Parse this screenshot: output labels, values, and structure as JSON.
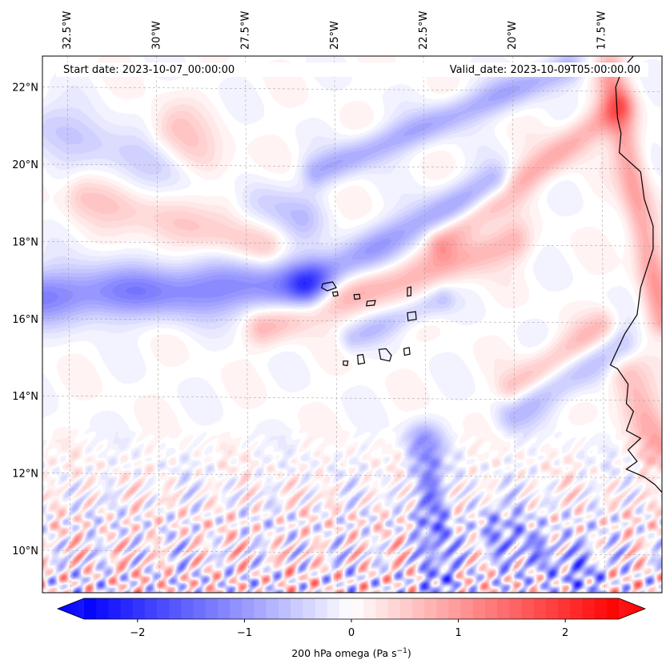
{
  "map": {
    "start_label": "Start date: 2023-10-07_00:00:00",
    "valid_label": "Valid_date: 2023-10-09T05:00:00.00",
    "extent": {
      "lon_min": -33.2,
      "lon_max": -15.8,
      "lat_min": 8.9,
      "lat_max": 22.8
    },
    "lon_ticks": [
      {
        "value": -32.5,
        "label": "32.5°W"
      },
      {
        "value": -30.0,
        "label": "30°W"
      },
      {
        "value": -27.5,
        "label": "27.5°W"
      },
      {
        "value": -25.0,
        "label": "25°W"
      },
      {
        "value": -22.5,
        "label": "22.5°W"
      },
      {
        "value": -20.0,
        "label": "20°W"
      },
      {
        "value": -17.5,
        "label": "17.5°W"
      }
    ],
    "lat_ticks": [
      {
        "value": 22,
        "label": "22°N"
      },
      {
        "value": 20,
        "label": "20°N"
      },
      {
        "value": 18,
        "label": "18°N"
      },
      {
        "value": 16,
        "label": "16°N"
      },
      {
        "value": 14,
        "label": "14°N"
      },
      {
        "value": 12,
        "label": "12°N"
      },
      {
        "value": 10,
        "label": "10°N"
      }
    ],
    "field_features": [
      {
        "type": "band",
        "sign": -1,
        "amp": 1.3,
        "lon0": -33.2,
        "lat0": 16.6,
        "lon1": -25.8,
        "lat1": 16.9,
        "width": 0.5
      },
      {
        "type": "band",
        "sign": -1,
        "amp": 1.0,
        "lon0": -25.8,
        "lat0": 16.9,
        "lon1": -20.5,
        "lat1": 19.5,
        "width": 0.35
      },
      {
        "type": "band",
        "sign": 1,
        "amp": 0.8,
        "lon0": -27.0,
        "lat0": 15.8,
        "lon1": -20.0,
        "lat1": 18.0,
        "width": 0.35
      },
      {
        "type": "band",
        "sign": -1,
        "amp": 0.9,
        "lon0": -25.5,
        "lat0": 19.8,
        "lon1": -18.5,
        "lat1": 22.5,
        "width": 0.3
      },
      {
        "type": "band",
        "sign": 1,
        "amp": 0.9,
        "lon0": -22.0,
        "lat0": 18.0,
        "lon1": -17.0,
        "lat1": 21.5,
        "width": 0.3
      },
      {
        "type": "band",
        "sign": -1,
        "amp": 0.6,
        "lon0": -33.0,
        "lat0": 21.0,
        "lon1": -26.0,
        "lat1": 18.6,
        "width": 0.45
      },
      {
        "type": "band",
        "sign": 1,
        "amp": 0.6,
        "lon0": -32.0,
        "lat0": 19.2,
        "lon1": -27.0,
        "lat1": 17.8,
        "width": 0.4
      },
      {
        "type": "band",
        "sign": 1,
        "amp": 0.7,
        "lon0": -29.5,
        "lat0": 20.8,
        "lon1": -28.0,
        "lat1": 19.3,
        "width": 0.5
      },
      {
        "type": "band",
        "sign": -1,
        "amp": 0.7,
        "lon0": -20.0,
        "lat0": 13.5,
        "lon1": -17.0,
        "lat1": 15.3,
        "width": 0.35
      },
      {
        "type": "band",
        "sign": 1,
        "amp": 0.7,
        "lon0": -20.0,
        "lat0": 14.2,
        "lon1": -17.5,
        "lat1": 15.8,
        "width": 0.3
      },
      {
        "type": "band",
        "sign": -1,
        "amp": 1.2,
        "lon0": -22.5,
        "lat0": 12.8,
        "lon1": -22.0,
        "lat1": 9.2,
        "width": 0.35
      },
      {
        "type": "band",
        "sign": -1,
        "amp": 1.0,
        "lon0": -20.5,
        "lat0": 10.6,
        "lon1": -18.0,
        "lat1": 9.4,
        "width": 0.45
      },
      {
        "type": "band",
        "sign": 1,
        "amp": 1.0,
        "lon0": -17.3,
        "lat0": 22.5,
        "lon1": -15.8,
        "lat1": 16.0,
        "width": 0.3
      },
      {
        "type": "band",
        "sign": 1,
        "amp": 0.8,
        "lon0": -16.8,
        "lat0": 14.5,
        "lon1": -15.8,
        "lat1": 12.5,
        "width": 0.4
      },
      {
        "type": "band",
        "sign": -1,
        "amp": 0.6,
        "lon0": -24.5,
        "lat0": 15.5,
        "lon1": -22.0,
        "lat1": 16.5,
        "width": 0.25
      }
    ],
    "islands": [
      [
        [
          -25.33,
          16.9
        ],
        [
          -25.05,
          16.95
        ],
        [
          -24.95,
          16.8
        ],
        [
          -25.2,
          16.72
        ],
        [
          -25.36,
          16.8
        ]
      ],
      [
        [
          -25.05,
          16.68
        ],
        [
          -24.92,
          16.7
        ],
        [
          -24.9,
          16.6
        ],
        [
          -25.02,
          16.58
        ]
      ],
      [
        [
          -24.45,
          16.62
        ],
        [
          -24.3,
          16.63
        ],
        [
          -24.28,
          16.52
        ],
        [
          -24.43,
          16.5
        ]
      ],
      [
        [
          -24.08,
          16.45
        ],
        [
          -23.85,
          16.47
        ],
        [
          -23.88,
          16.35
        ],
        [
          -24.1,
          16.33
        ]
      ],
      [
        [
          -22.95,
          16.8
        ],
        [
          -22.85,
          16.82
        ],
        [
          -22.85,
          16.6
        ],
        [
          -22.95,
          16.58
        ]
      ],
      [
        [
          -22.95,
          16.15
        ],
        [
          -22.72,
          16.18
        ],
        [
          -22.7,
          15.98
        ],
        [
          -22.93,
          15.95
        ]
      ],
      [
        [
          -23.75,
          15.2
        ],
        [
          -23.55,
          15.22
        ],
        [
          -23.4,
          15.05
        ],
        [
          -23.45,
          14.9
        ],
        [
          -23.7,
          14.95
        ]
      ],
      [
        [
          -24.35,
          15.05
        ],
        [
          -24.2,
          15.07
        ],
        [
          -24.15,
          14.85
        ],
        [
          -24.33,
          14.82
        ]
      ],
      [
        [
          -23.05,
          15.22
        ],
        [
          -22.9,
          15.25
        ],
        [
          -22.88,
          15.08
        ],
        [
          -23.03,
          15.05
        ]
      ],
      [
        [
          -24.75,
          14.9
        ],
        [
          -24.62,
          14.9
        ],
        [
          -24.64,
          14.78
        ],
        [
          -24.75,
          14.8
        ]
      ]
    ],
    "coastline": [
      [
        -16.6,
        22.8
      ],
      [
        -16.9,
        22.5
      ],
      [
        -17.1,
        22.0
      ],
      [
        -17.05,
        21.2
      ],
      [
        -16.95,
        20.8
      ],
      [
        -17.0,
        20.3
      ],
      [
        -16.4,
        19.8
      ],
      [
        -16.3,
        19.1
      ],
      [
        -16.05,
        18.4
      ],
      [
        -16.05,
        17.8
      ],
      [
        -16.4,
        16.8
      ],
      [
        -16.5,
        16.1
      ],
      [
        -16.85,
        15.6
      ],
      [
        -17.25,
        14.8
      ],
      [
        -17.05,
        14.7
      ],
      [
        -16.75,
        14.3
      ],
      [
        -16.8,
        13.8
      ],
      [
        -16.6,
        13.6
      ],
      [
        -16.8,
        13.1
      ],
      [
        -16.4,
        12.9
      ],
      [
        -16.75,
        12.6
      ],
      [
        -16.5,
        12.3
      ],
      [
        -16.8,
        12.1
      ],
      [
        -16.3,
        11.9
      ],
      [
        -16.0,
        11.7
      ],
      [
        -15.8,
        11.5
      ]
    ]
  },
  "colorbar": {
    "vmin": -2.75,
    "vmax": 2.75,
    "tick_values": [
      -2,
      -1,
      0,
      1,
      2
    ],
    "tick_labels": [
      "−2",
      "−1",
      "0",
      "1",
      "2"
    ],
    "label_base": "200 hPa omega (Pa s",
    "label_exp": "−1",
    "label_close": ")",
    "color_negative": "#0000ff",
    "color_zero": "#ffffff",
    "color_positive": "#ff0000"
  }
}
